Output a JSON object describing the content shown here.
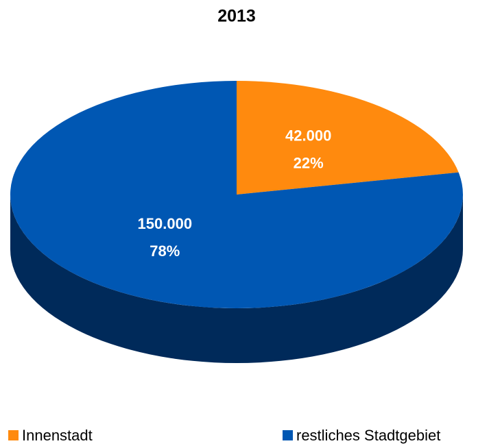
{
  "chart_data": {
    "type": "pie",
    "title": "2013",
    "categories": [
      "Innenstadt",
      "restliches Stadtgebiet"
    ],
    "values": [
      42000,
      150000
    ],
    "value_labels": [
      "42.000",
      "150.000"
    ],
    "percentages": [
      22,
      78
    ],
    "percent_labels": [
      "22%",
      "78%"
    ],
    "colors": [
      "#ff8a0e",
      "#0057b3"
    ],
    "side_colors": [
      "#b35e00",
      "#002a5a"
    ],
    "legend": "bottom"
  }
}
